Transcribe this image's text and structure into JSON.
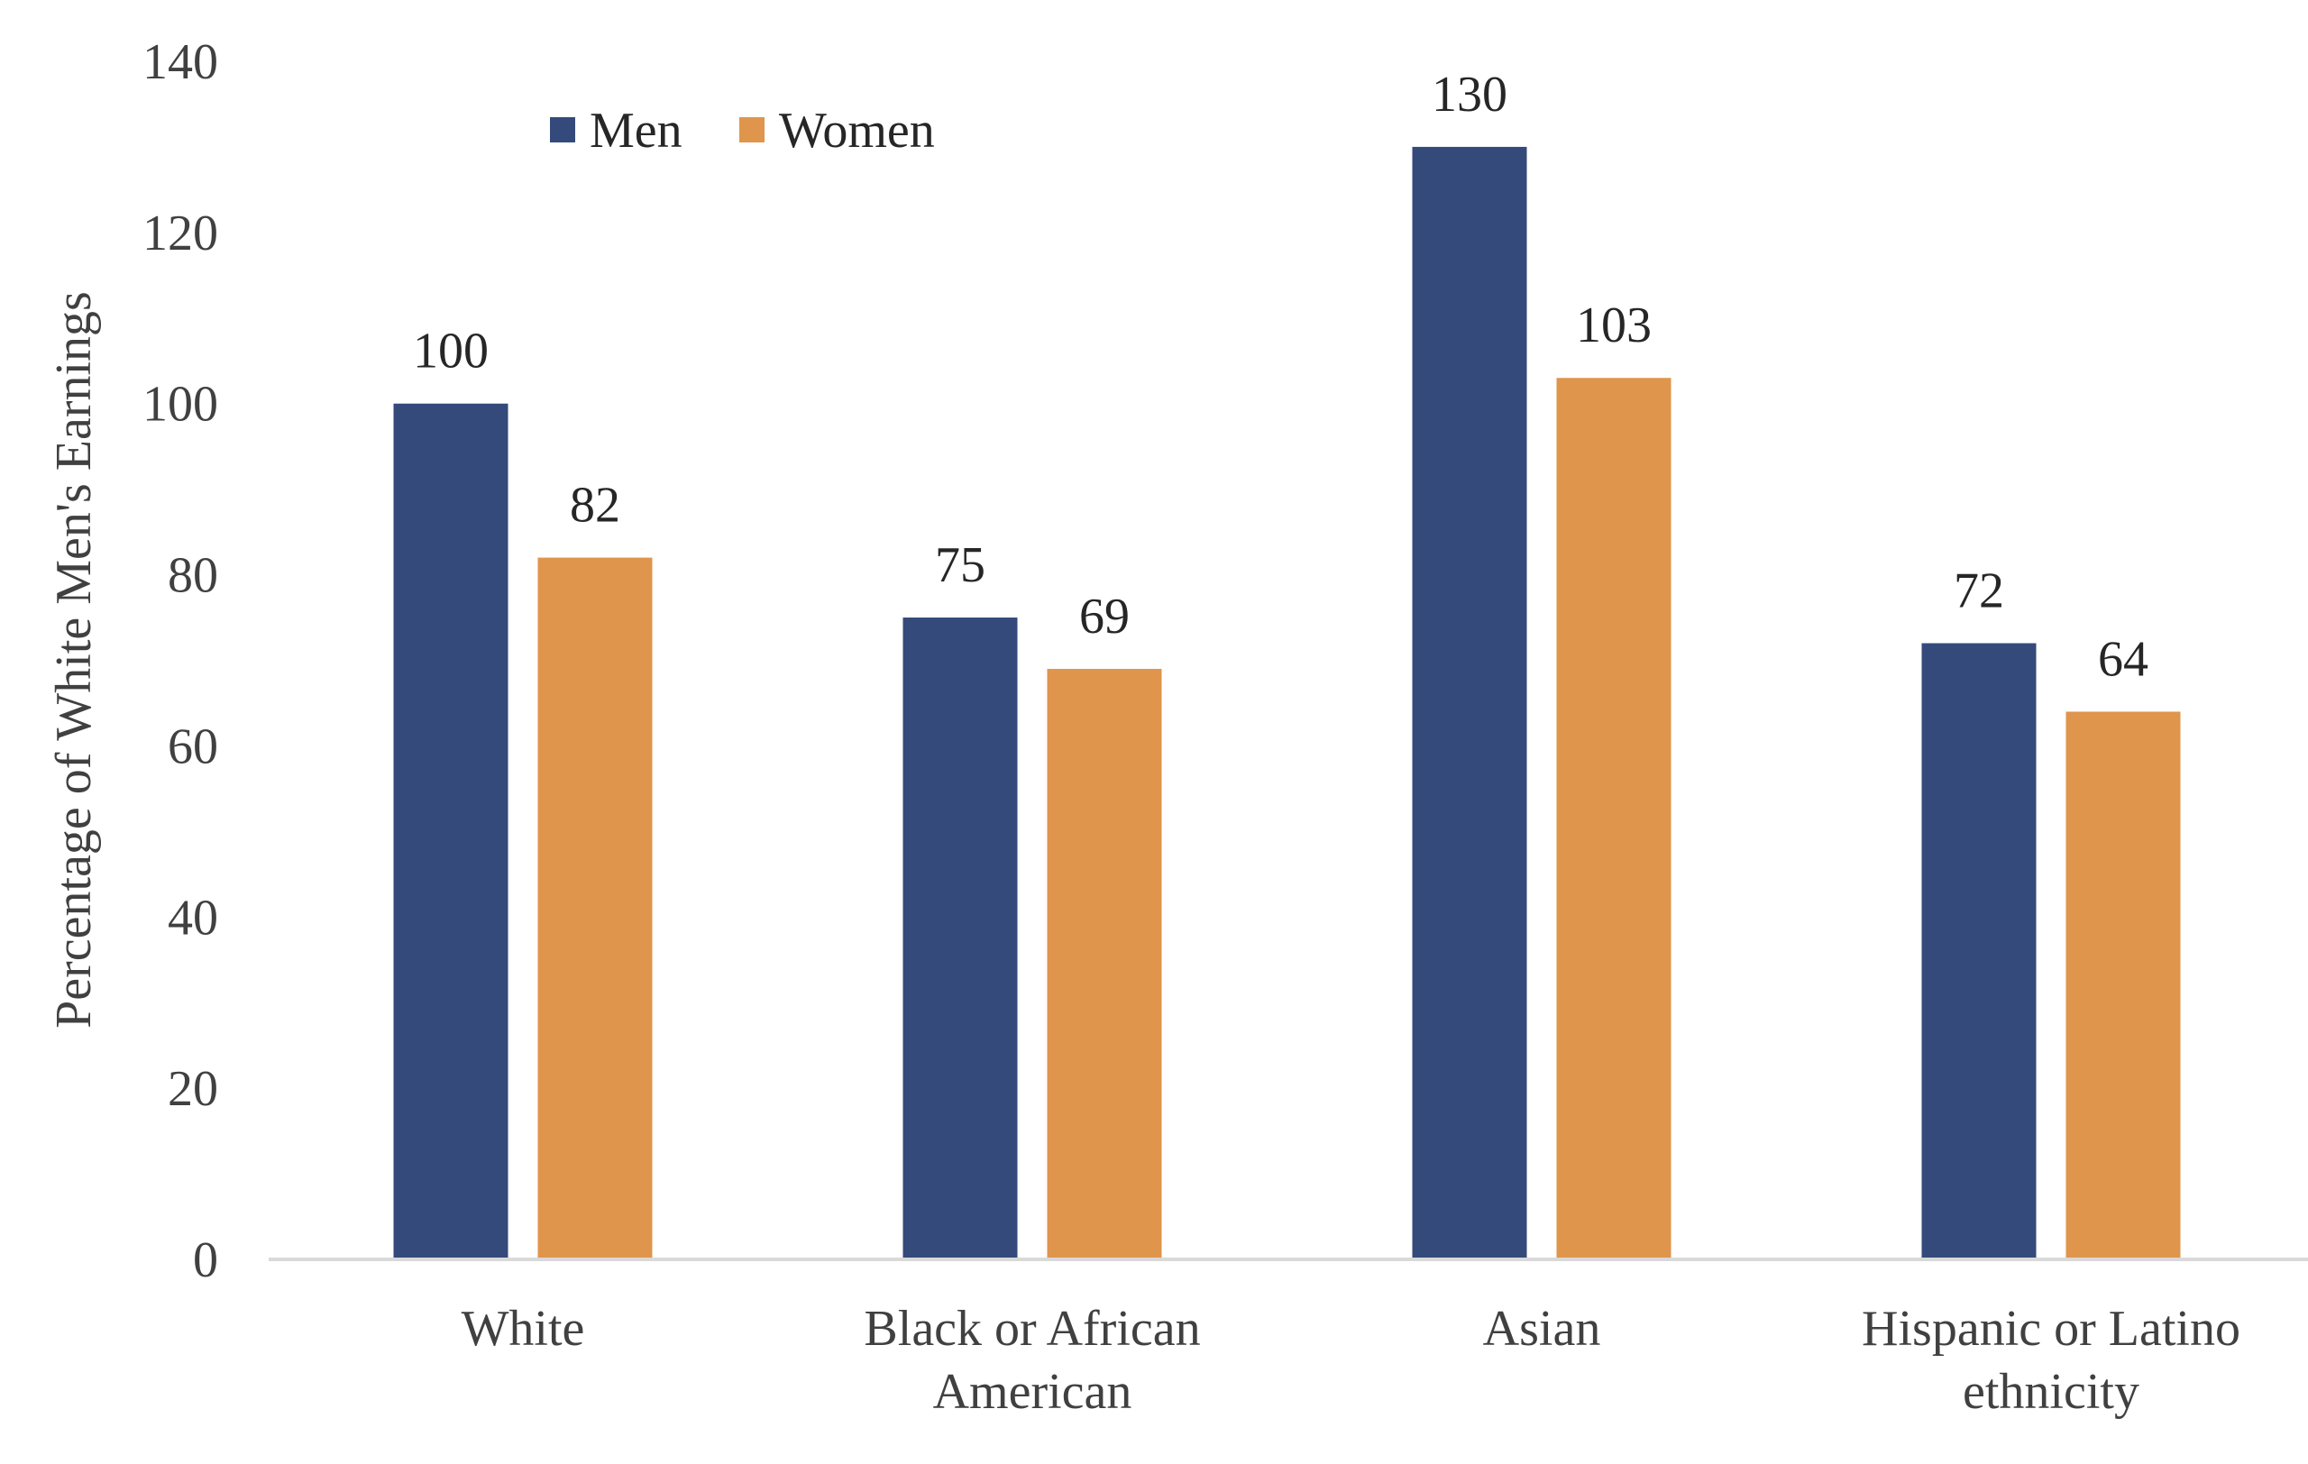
{
  "chart_data": {
    "type": "bar",
    "title": "",
    "xlabel": "",
    "ylabel": "Percentage of White Men's Earnings",
    "ylim": [
      0,
      140
    ],
    "yticks": [
      0,
      20,
      40,
      60,
      80,
      100,
      120,
      140
    ],
    "grid": false,
    "legend_position": "top-left",
    "categories": [
      [
        "White"
      ],
      [
        "Black or African",
        "American"
      ],
      [
        "Asian"
      ],
      [
        "Hispanic or Latino",
        "ethnicity"
      ]
    ],
    "series": [
      {
        "name": "Men",
        "color": "#334a7a",
        "values": [
          100,
          75,
          130,
          72
        ]
      },
      {
        "name": "Women",
        "color": "#df954c",
        "values": [
          82,
          69,
          103,
          64
        ]
      }
    ]
  }
}
